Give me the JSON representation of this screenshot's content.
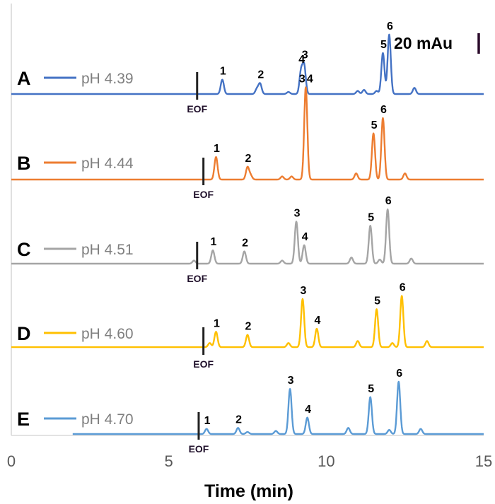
{
  "chart_data": {
    "type": "line",
    "title": "",
    "xlabel": "Time (min)",
    "ylabel": "",
    "xlim": [
      0,
      15
    ],
    "x_ticks": [
      0,
      5,
      10,
      15
    ],
    "x_tick_labels": [
      "0",
      "5",
      "10",
      "15"
    ],
    "scale_bar_label": "20 mAu",
    "scale_bar_value": 20,
    "eof_label": "EOF",
    "series": [
      {
        "letter": "A",
        "name": "pH 4.39",
        "color": "#4472c4",
        "start_time": 0,
        "baseline_level": 0,
        "eof_time": 5.9,
        "peaks": [
          {
            "label": "1",
            "time": 6.7,
            "height": 14
          },
          {
            "label": "2",
            "time": 7.9,
            "height": 10
          },
          {
            "label": "4",
            "time": 9.2,
            "height": 22
          },
          {
            "label": "3",
            "time": 9.3,
            "height": 27
          },
          {
            "label": "5",
            "time": 11.8,
            "height": 40
          },
          {
            "label": "6",
            "time": 12.0,
            "height": 58
          }
        ],
        "minor_peaks": [
          {
            "time": 7.8,
            "height": 5
          },
          {
            "time": 8.8,
            "height": 2
          },
          {
            "time": 11.0,
            "height": 3
          },
          {
            "time": 11.2,
            "height": 4
          },
          {
            "time": 11.6,
            "height": 3
          },
          {
            "time": 12.8,
            "height": 6
          }
        ]
      },
      {
        "letter": "B",
        "name": "pH 4.44",
        "color": "#ed7d31",
        "start_time": 0,
        "baseline_level": 0,
        "eof_time": 6.1,
        "peaks": [
          {
            "label": "1",
            "time": 6.5,
            "height": 22
          },
          {
            "label": "2",
            "time": 7.5,
            "height": 12
          },
          {
            "label": "3",
            "time": 9.35,
            "height": 45
          },
          {
            "label": "4",
            "time": 9.35,
            "height": 45
          },
          {
            "label": "5",
            "time": 11.5,
            "height": 45
          },
          {
            "label": "6",
            "time": 11.8,
            "height": 60
          }
        ],
        "minor_peaks": [
          {
            "time": 7.6,
            "height": 4
          },
          {
            "time": 8.6,
            "height": 3
          },
          {
            "time": 8.9,
            "height": 3
          },
          {
            "time": 10.95,
            "height": 6
          },
          {
            "time": 12.5,
            "height": 6
          }
        ]
      },
      {
        "letter": "C",
        "name": "pH 4.51",
        "color": "#a5a5a5",
        "start_time": 0,
        "baseline_level": 0,
        "eof_time": 5.9,
        "peaks": [
          {
            "label": "1",
            "time": 6.4,
            "height": 13
          },
          {
            "label": "2",
            "time": 7.4,
            "height": 12
          },
          {
            "label": "3",
            "time": 9.05,
            "height": 41
          },
          {
            "label": "4",
            "time": 9.3,
            "height": 18
          },
          {
            "label": "5",
            "time": 11.4,
            "height": 37
          },
          {
            "label": "6",
            "time": 11.95,
            "height": 53
          }
        ],
        "minor_peaks": [
          {
            "time": 5.8,
            "height": 3
          },
          {
            "time": 8.6,
            "height": 3
          },
          {
            "time": 10.8,
            "height": 6
          },
          {
            "time": 11.7,
            "height": 4
          },
          {
            "time": 12.7,
            "height": 5
          }
        ]
      },
      {
        "letter": "D",
        "name": "pH 4.60",
        "color": "#ffc000",
        "start_time": 0,
        "baseline_level": 2,
        "eof_time": 6.1,
        "peaks": [
          {
            "label": "1",
            "time": 6.5,
            "height": 15
          },
          {
            "label": "2",
            "time": 7.5,
            "height": 12
          },
          {
            "label": "3",
            "time": 9.25,
            "height": 47
          },
          {
            "label": "4",
            "time": 9.7,
            "height": 18
          },
          {
            "label": "5",
            "time": 11.6,
            "height": 37
          },
          {
            "label": "6",
            "time": 12.4,
            "height": 50
          }
        ],
        "minor_peaks": [
          {
            "time": 6.3,
            "height": 4
          },
          {
            "time": 8.8,
            "height": 4
          },
          {
            "time": 11.0,
            "height": 6
          },
          {
            "time": 12.1,
            "height": 4
          },
          {
            "time": 13.2,
            "height": 6
          }
        ]
      },
      {
        "letter": "E",
        "name": "pH 4.70",
        "color": "#5b9bd5",
        "start_time": 1.95,
        "baseline_level": 0,
        "eof_time": 5.95,
        "peaks": [
          {
            "label": "1",
            "time": 6.2,
            "height": 5
          },
          {
            "label": "2",
            "time": 7.2,
            "height": 6
          },
          {
            "label": "3",
            "time": 8.85,
            "height": 44
          },
          {
            "label": "4",
            "time": 9.4,
            "height": 16
          },
          {
            "label": "5",
            "time": 11.4,
            "height": 36
          },
          {
            "label": "6",
            "time": 12.3,
            "height": 51
          }
        ],
        "minor_peaks": [
          {
            "time": 7.5,
            "height": 2
          },
          {
            "time": 8.4,
            "height": 3
          },
          {
            "time": 10.7,
            "height": 6
          },
          {
            "time": 12.0,
            "height": 4
          },
          {
            "time": 13.0,
            "height": 5
          }
        ]
      }
    ]
  }
}
